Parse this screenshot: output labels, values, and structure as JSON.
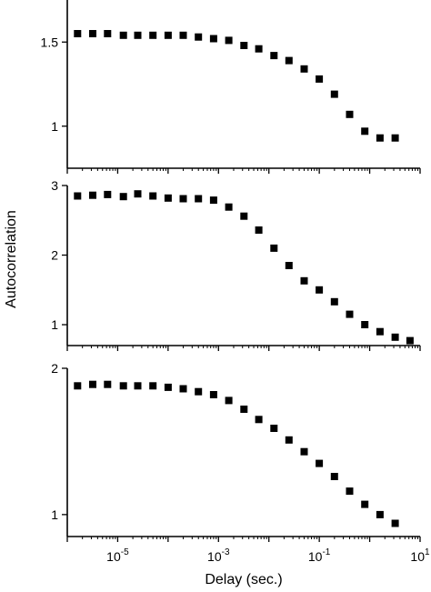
{
  "chart_data": {
    "type": "scatter",
    "xlabel": "Delay (sec.)",
    "ylabel": "Autocorrelation",
    "xscale": "log",
    "xlim": [
      1e-06,
      10
    ],
    "x_tick_labels": [
      {
        "base": "10",
        "exp": "-5",
        "value": 1e-05
      },
      {
        "base": "10",
        "exp": "-3",
        "value": 0.001
      },
      {
        "base": "10",
        "exp": "-1",
        "value": 0.1
      },
      {
        "base": "10",
        "exp": "1",
        "value": 10
      }
    ],
    "marker": "filled-square",
    "marker_color": "#000000",
    "panels": [
      {
        "ylim": [
          0.75,
          1.75
        ],
        "y_ticks": [
          {
            "value": 1,
            "label": "1"
          },
          {
            "value": 1.5,
            "label": "1.5"
          }
        ],
        "x": [
          1.6e-06,
          3.2e-06,
          6.3e-06,
          1.3e-05,
          2.5e-05,
          5e-05,
          0.0001,
          0.0002,
          0.0004,
          0.0008,
          0.0016,
          0.0032,
          0.0063,
          0.0126,
          0.025,
          0.05,
          0.1,
          0.2,
          0.4,
          0.8,
          1.6,
          3.2
        ],
        "y": [
          1.55,
          1.55,
          1.55,
          1.54,
          1.54,
          1.54,
          1.54,
          1.54,
          1.53,
          1.52,
          1.51,
          1.48,
          1.46,
          1.42,
          1.39,
          1.34,
          1.28,
          1.19,
          1.07,
          0.97,
          0.93,
          0.93
        ]
      },
      {
        "ylim": [
          0.7,
          3.0
        ],
        "y_ticks": [
          {
            "value": 1,
            "label": "1"
          },
          {
            "value": 2,
            "label": "2"
          },
          {
            "value": 3,
            "label": "3"
          }
        ],
        "x": [
          1.6e-06,
          3.2e-06,
          6.3e-06,
          1.3e-05,
          2.5e-05,
          5e-05,
          0.0001,
          0.0002,
          0.0004,
          0.0008,
          0.0016,
          0.0032,
          0.0063,
          0.0126,
          0.025,
          0.05,
          0.1,
          0.2,
          0.4,
          0.8,
          1.6,
          3.2,
          6.3
        ],
        "y": [
          2.85,
          2.86,
          2.87,
          2.84,
          2.88,
          2.85,
          2.82,
          2.81,
          2.81,
          2.79,
          2.69,
          2.56,
          2.36,
          2.1,
          1.85,
          1.63,
          1.5,
          1.33,
          1.15,
          1.0,
          0.9,
          0.82,
          0.77
        ]
      },
      {
        "ylim": [
          0.85,
          2.0
        ],
        "y_ticks": [
          {
            "value": 1,
            "label": "1"
          },
          {
            "value": 2,
            "label": "2"
          }
        ],
        "x": [
          1.6e-06,
          3.2e-06,
          6.3e-06,
          1.3e-05,
          2.5e-05,
          5e-05,
          0.0001,
          0.0002,
          0.0004,
          0.0008,
          0.0016,
          0.0032,
          0.0063,
          0.0126,
          0.025,
          0.05,
          0.1,
          0.2,
          0.4,
          0.8,
          1.6,
          3.2
        ],
        "y": [
          1.88,
          1.89,
          1.89,
          1.88,
          1.88,
          1.88,
          1.87,
          1.86,
          1.84,
          1.82,
          1.78,
          1.72,
          1.65,
          1.59,
          1.51,
          1.43,
          1.35,
          1.26,
          1.16,
          1.07,
          1.0,
          0.94
        ]
      }
    ]
  }
}
